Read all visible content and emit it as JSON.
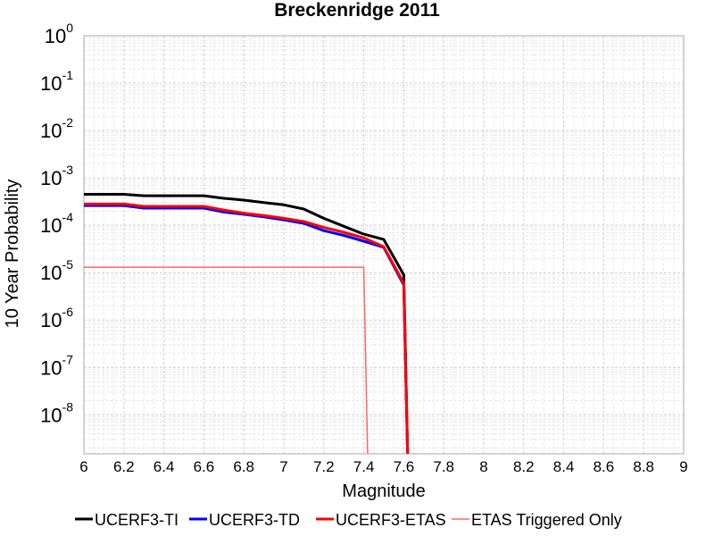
{
  "chart_data": {
    "type": "line",
    "title": "Breckenridge 2011",
    "xlabel": "Magnitude",
    "ylabel": "10 Year Probability",
    "xlim": [
      6,
      9
    ],
    "ylim": [
      1.5e-09,
      1
    ],
    "y_scale": "log",
    "grid": true,
    "legend_position": "bottom",
    "x_ticks": [
      "6",
      "6.2",
      "6.4",
      "6.6",
      "6.8",
      "7",
      "7.2",
      "7.4",
      "7.6",
      "7.8",
      "8",
      "8.2",
      "8.4",
      "8.6",
      "8.8",
      "9"
    ],
    "y_ticks": [
      {
        "base": "10",
        "exp": "0",
        "value": 1
      },
      {
        "base": "10",
        "exp": "-1",
        "value": 0.1
      },
      {
        "base": "10",
        "exp": "-2",
        "value": 0.01
      },
      {
        "base": "10",
        "exp": "-3",
        "value": 0.001
      },
      {
        "base": "10",
        "exp": "-4",
        "value": 0.0001
      },
      {
        "base": "10",
        "exp": "-5",
        "value": 1e-05
      },
      {
        "base": "10",
        "exp": "-6",
        "value": 1e-06
      },
      {
        "base": "10",
        "exp": "-7",
        "value": 1e-07
      },
      {
        "base": "10",
        "exp": "-8",
        "value": 1e-08
      }
    ],
    "series": [
      {
        "name": "UCERF3-TI",
        "color": "#000000",
        "width": 3,
        "x": [
          6.0,
          6.2,
          6.3,
          6.5,
          6.6,
          6.7,
          6.8,
          6.9,
          7.0,
          7.1,
          7.2,
          7.3,
          7.4,
          7.5,
          7.6,
          7.62
        ],
        "y": [
          0.00045,
          0.00045,
          0.00042,
          0.00042,
          0.00042,
          0.00037,
          0.00034,
          0.0003,
          0.00027,
          0.00022,
          0.00014,
          9.5e-05,
          6.5e-05,
          5e-05,
          9e-06,
          1e-09
        ]
      },
      {
        "name": "UCERF3-TD",
        "color": "#0000ff",
        "width": 3,
        "x": [
          6.0,
          6.2,
          6.3,
          6.5,
          6.6,
          6.7,
          6.8,
          6.9,
          7.0,
          7.1,
          7.2,
          7.3,
          7.4,
          7.5,
          7.6,
          7.62
        ],
        "y": [
          0.00026,
          0.00026,
          0.00023,
          0.00023,
          0.00023,
          0.00019,
          0.00017,
          0.00015,
          0.00013,
          0.00011,
          7.7e-05,
          6.1e-05,
          4.6e-05,
          3.4e-05,
          5.5e-06,
          1e-09
        ]
      },
      {
        "name": "UCERF3-ETAS",
        "color": "#ff0000",
        "width": 3,
        "x": [
          6.0,
          6.2,
          6.3,
          6.5,
          6.6,
          6.7,
          6.8,
          6.9,
          7.0,
          7.1,
          7.2,
          7.3,
          7.4,
          7.5,
          7.6,
          7.62
        ],
        "y": [
          0.00028,
          0.00028,
          0.00025,
          0.00025,
          0.00025,
          0.00021,
          0.00018,
          0.00016,
          0.00014,
          0.00012,
          9e-05,
          7.1e-05,
          5.4e-05,
          3.5e-05,
          6e-06,
          1e-09
        ]
      },
      {
        "name": "ETAS Triggered Only",
        "color": "#ff6666",
        "width": 1.5,
        "x": [
          6.0,
          7.4,
          7.42
        ],
        "y": [
          1.3e-05,
          1.3e-05,
          1e-09
        ]
      }
    ]
  }
}
